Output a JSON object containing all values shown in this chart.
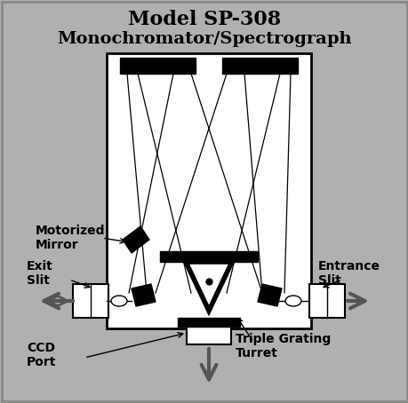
{
  "title_line1": "Model SP-308",
  "title_line2": "Monochromator/Spectrograph",
  "bg_color": "#b0b0b0",
  "box_color": "#ffffff",
  "black": "#000000",
  "dark_gray": "#555555",
  "labels": {
    "motorized_mirror": "Motorized\nMirror",
    "exit_slit": "Exit\nSlit",
    "entrance_slit": "Entrance\nSlit",
    "ccd_port": "CCD\nPort",
    "triple_grating": "Triple Grating\nTurret"
  }
}
